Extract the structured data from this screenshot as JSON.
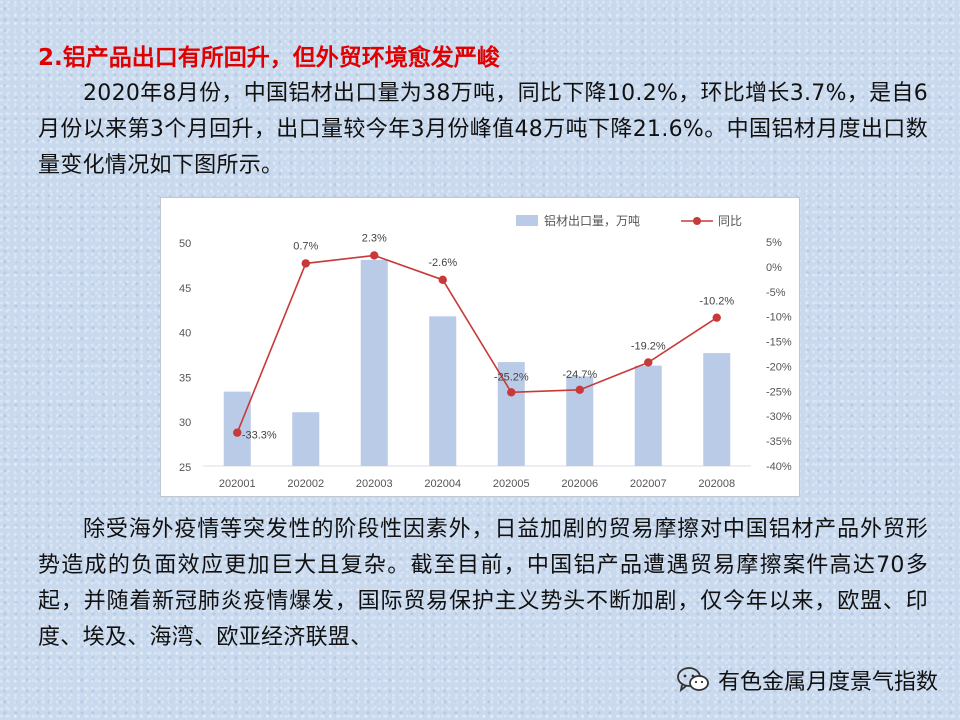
{
  "heading": "2.铝产品出口有所回升，但外贸环境愈发严峻",
  "paragraph1": "2020年8月份，中国铝材出口量为38万吨，同比下降10.2%，环比增长3.7%，是自6月份以来第3个月回升，出口量较今年3月份峰值48万吨下降21.6%。中国铝材月度出口数量变化情况如下图所示。",
  "paragraph2": "除受海外疫情等突发性的阶段性因素外，日益加剧的贸易摩擦对中国铝材产品外贸形势造成的负面效应更加巨大且复杂。截至目前，中国铝产品遭遇贸易摩擦案件高达70多起，并随着新冠肺炎疫情爆发，国际贸易保护主义势头不断加剧，仅今年以来，欧盟、印度、埃及、海湾、欧亚经济联盟、",
  "footer_text": "有色金属月度景气指数",
  "footer_icon": "wechat-icon",
  "colors": {
    "heading": "#e00000",
    "bar": "#b9cbe6",
    "line": "#c83a3a",
    "background": "#c9d9ee"
  },
  "chart_data": {
    "type": "bar-line-combo",
    "categories": [
      "202001",
      "202002",
      "202003",
      "202004",
      "202005",
      "202006",
      "202007",
      "202008"
    ],
    "series": [
      {
        "name": "铝材出口量，万吨",
        "type": "bar",
        "axis": "left",
        "values": [
          33.3,
          31.0,
          48.0,
          41.7,
          36.6,
          35.0,
          36.2,
          37.6
        ]
      },
      {
        "name": "同比",
        "type": "line",
        "axis": "right",
        "values": [
          -33.3,
          0.7,
          2.3,
          -2.6,
          -25.2,
          -24.7,
          -19.2,
          -10.2
        ],
        "labels": [
          "-33.3%",
          "0.7%",
          "2.3%",
          "-2.6%",
          "-25.2%",
          "-24.7%",
          "-19.2%",
          "-10.2%"
        ]
      }
    ],
    "y_left": {
      "min": 25,
      "max": 50,
      "ticks": [
        "25",
        "30",
        "35",
        "40",
        "45",
        "50"
      ]
    },
    "y_right": {
      "min": -40,
      "max": 5,
      "ticks": [
        "5%",
        "0%",
        "-5%",
        "-10%",
        "-15%",
        "-20%",
        "-25%",
        "-30%",
        "-35%",
        "-40%"
      ]
    },
    "legend_position": "top-right",
    "grid": false
  }
}
